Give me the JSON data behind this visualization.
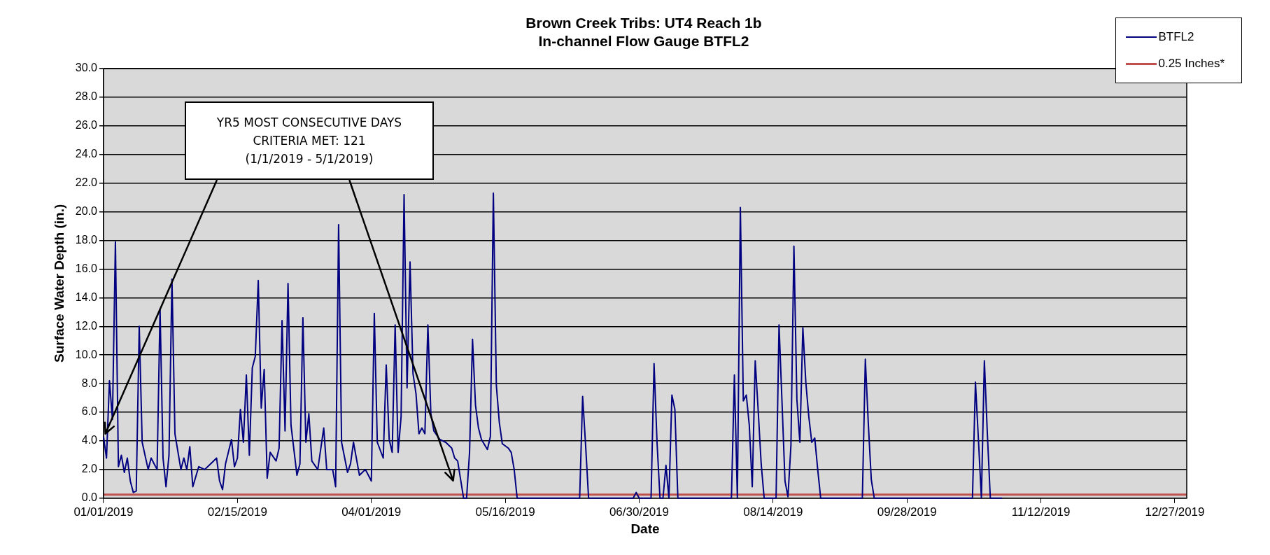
{
  "chart_data": {
    "type": "line",
    "title": "Brown Creek Tribs: UT4 Reach 1b",
    "subtitle": "In-channel Flow Gauge BTFL2",
    "xlabel": "Date",
    "ylabel": "Surface Water Depth (in.)",
    "series": [
      {
        "name": "BTFL2",
        "color": "#000080",
        "x": [
          "2019-01-01",
          "2019-01-02",
          "2019-01-03",
          "2019-01-04",
          "2019-01-05",
          "2019-01-06",
          "2019-01-07",
          "2019-01-08",
          "2019-01-09",
          "2019-01-10",
          "2019-01-11",
          "2019-01-12",
          "2019-01-13",
          "2019-01-14",
          "2019-01-16",
          "2019-01-17",
          "2019-01-19",
          "2019-01-20",
          "2019-01-21",
          "2019-01-22",
          "2019-01-23",
          "2019-01-24",
          "2019-01-25",
          "2019-01-27",
          "2019-01-28",
          "2019-01-29",
          "2019-01-30",
          "2019-01-31",
          "2019-02-02",
          "2019-02-04",
          "2019-02-06",
          "2019-02-08",
          "2019-02-09",
          "2019-02-10",
          "2019-02-11",
          "2019-02-13",
          "2019-02-14",
          "2019-02-15",
          "2019-02-16",
          "2019-02-17",
          "2019-02-18",
          "2019-02-19",
          "2019-02-20",
          "2019-02-21",
          "2019-02-22",
          "2019-02-23",
          "2019-02-24",
          "2019-02-25",
          "2019-02-26",
          "2019-02-28",
          "2019-03-01",
          "2019-03-02",
          "2019-03-03",
          "2019-03-04",
          "2019-03-05",
          "2019-03-07",
          "2019-03-08",
          "2019-03-09",
          "2019-03-10",
          "2019-03-11",
          "2019-03-12",
          "2019-03-14",
          "2019-03-16",
          "2019-03-17",
          "2019-03-19",
          "2019-03-20",
          "2019-03-21",
          "2019-03-22",
          "2019-03-24",
          "2019-03-25",
          "2019-03-26",
          "2019-03-28",
          "2019-03-30",
          "2019-03-31",
          "2019-04-01",
          "2019-04-02",
          "2019-04-03",
          "2019-04-05",
          "2019-04-06",
          "2019-04-07",
          "2019-04-08",
          "2019-04-09",
          "2019-04-10",
          "2019-04-11",
          "2019-04-12",
          "2019-04-13",
          "2019-04-14",
          "2019-04-15",
          "2019-04-16",
          "2019-04-17",
          "2019-04-18",
          "2019-04-19",
          "2019-04-20",
          "2019-04-21",
          "2019-04-22",
          "2019-04-24",
          "2019-04-26",
          "2019-04-28",
          "2019-04-29",
          "2019-04-30",
          "2019-05-02",
          "2019-05-03",
          "2019-05-04",
          "2019-05-05",
          "2019-05-06",
          "2019-05-07",
          "2019-05-08",
          "2019-05-10",
          "2019-05-11",
          "2019-05-12",
          "2019-05-13",
          "2019-05-14",
          "2019-05-15",
          "2019-05-17",
          "2019-05-18",
          "2019-05-19",
          "2019-05-20",
          "2019-06-10",
          "2019-06-11",
          "2019-06-12",
          "2019-06-13",
          "2019-06-28",
          "2019-06-29",
          "2019-06-30",
          "2019-07-04",
          "2019-07-05",
          "2019-07-06",
          "2019-07-07",
          "2019-07-08",
          "2019-07-09",
          "2019-07-10",
          "2019-07-11",
          "2019-07-12",
          "2019-07-13",
          "2019-07-31",
          "2019-08-01",
          "2019-08-02",
          "2019-08-03",
          "2019-08-04",
          "2019-08-05",
          "2019-08-06",
          "2019-08-07",
          "2019-08-08",
          "2019-08-09",
          "2019-08-10",
          "2019-08-11",
          "2019-08-15",
          "2019-08-16",
          "2019-08-17",
          "2019-08-18",
          "2019-08-19",
          "2019-08-20",
          "2019-08-21",
          "2019-08-22",
          "2019-08-23",
          "2019-08-24",
          "2019-08-25",
          "2019-08-26",
          "2019-08-27",
          "2019-08-28",
          "2019-08-29",
          "2019-08-30",
          "2019-09-13",
          "2019-09-14",
          "2019-09-15",
          "2019-09-16",
          "2019-09-17",
          "2019-10-20",
          "2019-10-21",
          "2019-10-22",
          "2019-10-23",
          "2019-10-24",
          "2019-10-25",
          "2019-10-26",
          "2019-10-30"
        ],
        "values": [
          4.3,
          2.8,
          8.2,
          5.5,
          17.9,
          2.2,
          3.0,
          1.8,
          2.8,
          1.2,
          0.4,
          0.5,
          12.0,
          3.9,
          2.0,
          2.8,
          2.0,
          13.2,
          2.8,
          0.8,
          3.0,
          15.3,
          4.5,
          2.0,
          2.8,
          2.0,
          3.6,
          0.8,
          2.2,
          2.0,
          2.4,
          2.8,
          1.2,
          0.6,
          2.4,
          4.1,
          2.2,
          2.8,
          6.2,
          3.9,
          8.6,
          3.0,
          9.1,
          9.9,
          15.2,
          6.3,
          9.0,
          1.4,
          3.2,
          2.6,
          3.5,
          12.4,
          4.7,
          15.0,
          5.1,
          1.6,
          2.4,
          12.6,
          3.9,
          5.9,
          2.6,
          2.0,
          4.9,
          2.0,
          2.0,
          0.8,
          19.1,
          3.9,
          1.8,
          2.4,
          3.9,
          1.6,
          2.0,
          1.6,
          1.2,
          12.9,
          3.9,
          2.8,
          9.3,
          4.1,
          3.2,
          12.1,
          3.2,
          5.7,
          21.2,
          7.7,
          16.5,
          8.7,
          7.3,
          4.5,
          4.9,
          4.5,
          12.1,
          5.9,
          4.7,
          4.1,
          3.9,
          3.5,
          2.8,
          2.6,
          0,
          0,
          3.2,
          11.1,
          6.5,
          4.9,
          4.1,
          3.4,
          4.3,
          21.3,
          7.9,
          5.3,
          3.8,
          3.5,
          3.2,
          2.0,
          0,
          0,
          7.1,
          3.7,
          0,
          0,
          0.4,
          0,
          0,
          9.4,
          3.9,
          0,
          0,
          2.3,
          0,
          7.2,
          6.2,
          0,
          0,
          8.6,
          0,
          20.3,
          6.8,
          7.2,
          5.1,
          0.8,
          9.6,
          6.1,
          2.4,
          0,
          0,
          12.1,
          6.7,
          1.2,
          0.1,
          3.7,
          17.6,
          6.9,
          3.9,
          11.9,
          8.1,
          5.7,
          3.9,
          4.2,
          2.0,
          0,
          0,
          9.7,
          5.2,
          1.3,
          0,
          0,
          8.1,
          4.1,
          0,
          9.6,
          4.5,
          0,
          0
        ]
      }
    ],
    "ref_lines": [
      {
        "axis": "y",
        "value": 0.25,
        "label": "0.25 Inches*",
        "color": "#c0504d"
      }
    ],
    "annotations": [
      "YR5 MOST CONSECUTIVE DAYS\nCRITERIA MET:  121\n(1/1/2019 - 5/1/2019)"
    ],
    "xlim": [
      "2019-01-01",
      "2019-12-31"
    ],
    "xticks": [
      {
        "value": "2019-01-01",
        "label": "01/01/2019"
      },
      {
        "value": "2019-02-15",
        "label": "02/15/2019"
      },
      {
        "value": "2019-04-01",
        "label": "04/01/2019"
      },
      {
        "value": "2019-05-16",
        "label": "05/16/2019"
      },
      {
        "value": "2019-06-30",
        "label": "06/30/2019"
      },
      {
        "value": "2019-08-14",
        "label": "08/14/2019"
      },
      {
        "value": "2019-09-28",
        "label": "09/28/2019"
      },
      {
        "value": "2019-11-12",
        "label": "11/12/2019"
      },
      {
        "value": "2019-12-27",
        "label": "12/27/2019"
      }
    ],
    "ylim": [
      0,
      30
    ],
    "yticks": [
      {
        "value": 0,
        "label": "0.0"
      },
      {
        "value": 2,
        "label": "2.0"
      },
      {
        "value": 4,
        "label": "4.0"
      },
      {
        "value": 6,
        "label": "6.0"
      },
      {
        "value": 8,
        "label": "8.0"
      },
      {
        "value": 10,
        "label": "10.0"
      },
      {
        "value": 12,
        "label": "12.0"
      },
      {
        "value": 14,
        "label": "14.0"
      },
      {
        "value": 16,
        "label": "16.0"
      },
      {
        "value": 18,
        "label": "18.0"
      },
      {
        "value": 20,
        "label": "20.0"
      },
      {
        "value": 22,
        "label": "22.0"
      },
      {
        "value": 24,
        "label": "24.0"
      },
      {
        "value": 26,
        "label": "26.0"
      },
      {
        "value": 28,
        "label": "28.0"
      },
      {
        "value": 30,
        "label": "30.0"
      }
    ],
    "grid": "y",
    "legend": "top right",
    "marker": "none",
    "line_style": "solid"
  }
}
